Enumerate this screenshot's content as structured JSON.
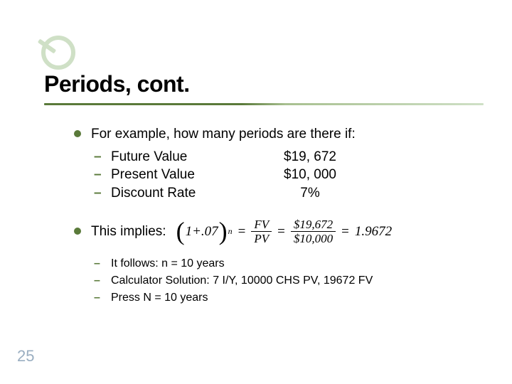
{
  "slide": {
    "number": "25",
    "title": "Periods, cont.",
    "accent_color": "#5a7a3a",
    "accent_light": "#cfe0c6",
    "slidenum_color": "#9aaec1",
    "background": "#ffffff",
    "title_fontsize": 32,
    "body_fontsize": 19,
    "small_fontsize": 16
  },
  "b1": {
    "text": "For example, how many periods are there if:",
    "items": [
      {
        "label": "Future Value",
        "value": "$19, 672"
      },
      {
        "label": "Present Value",
        "value": "$10, 000"
      },
      {
        "label": "Discount Rate",
        "value": "7%"
      }
    ]
  },
  "b2": {
    "text": "This implies:",
    "equation": {
      "lhs_inner": "1+.07",
      "lhs_exp": "n",
      "frac1_num": "FV",
      "frac1_den": "PV",
      "frac2_num": "$19,672",
      "frac2_den": "$10,000",
      "result": "1.9672"
    },
    "items": [
      "It follows: n = 10 years",
      "Calculator Solution: 7 I/Y, 10000 CHS PV, 19672 FV",
      "Press N = 10 years"
    ]
  }
}
